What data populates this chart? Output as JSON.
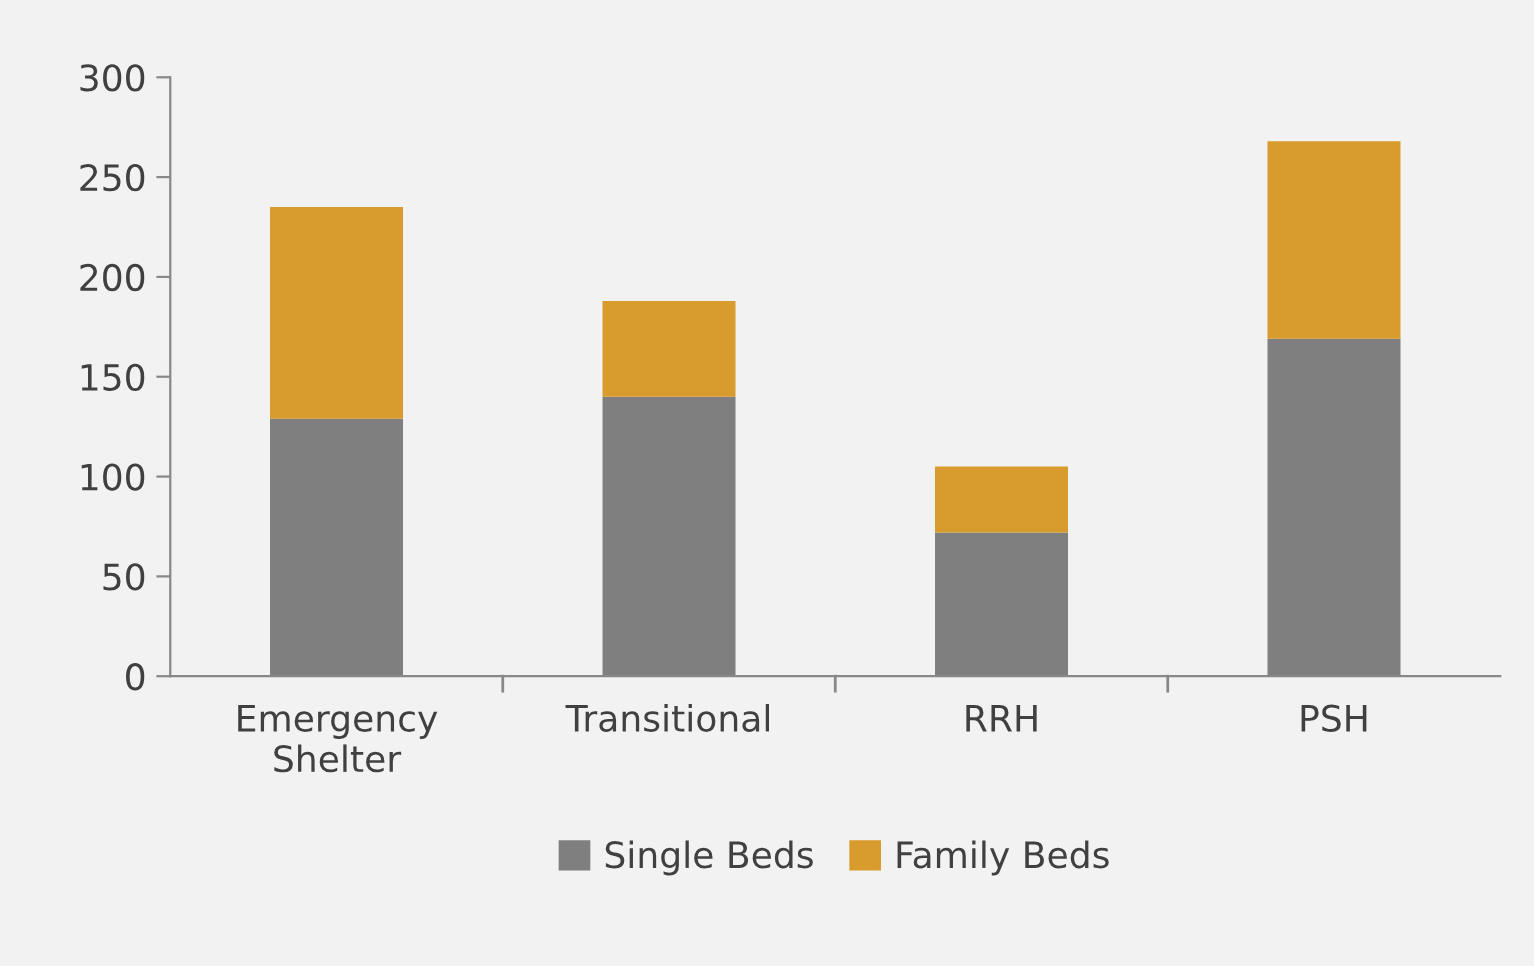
{
  "chart_data": {
    "type": "bar",
    "stacked": true,
    "categories": [
      "Emergency Shelter",
      "Transitional",
      "RRH",
      "PSH"
    ],
    "series": [
      {
        "name": "Single Beds",
        "color": "#7f7f7f",
        "values": [
          129,
          140,
          72,
          169
        ]
      },
      {
        "name": "Family Beds",
        "color": "#d89b2e",
        "values": [
          106,
          48,
          33,
          99
        ]
      }
    ],
    "ylim": [
      0,
      300
    ],
    "yticks": [
      0,
      50,
      100,
      150,
      200,
      250,
      300
    ],
    "grid": false,
    "legend": "bottom"
  }
}
